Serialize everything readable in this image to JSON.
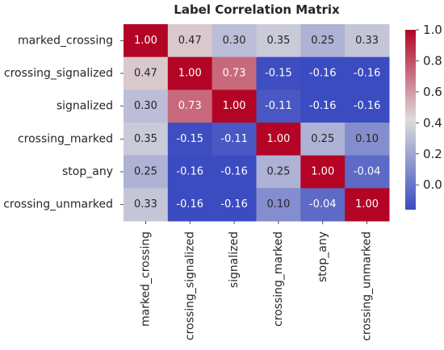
{
  "chart_data": {
    "type": "heatmap",
    "title": "Label Correlation Matrix",
    "row_labels": [
      "marked_crossing",
      "crossing_signalized",
      "signalized",
      "crossing_marked",
      "stop_any",
      "crossing_unmarked"
    ],
    "col_labels": [
      "marked_crossing",
      "crossing_signalized",
      "signalized",
      "crossing_marked",
      "stop_any",
      "crossing_unmarked"
    ],
    "values": [
      [
        1.0,
        0.47,
        0.3,
        0.35,
        0.25,
        0.33
      ],
      [
        0.47,
        1.0,
        0.73,
        -0.15,
        -0.16,
        -0.16
      ],
      [
        0.3,
        0.73,
        1.0,
        -0.11,
        -0.16,
        -0.16
      ],
      [
        0.35,
        -0.15,
        -0.11,
        1.0,
        0.25,
        0.1
      ],
      [
        0.25,
        -0.16,
        -0.16,
        0.25,
        1.0,
        -0.04
      ],
      [
        0.33,
        -0.16,
        -0.16,
        0.1,
        -0.04,
        1.0
      ]
    ],
    "value_format": "0.00",
    "colormap": "coolwarm",
    "colormap_stops": [
      "#3b4cc0",
      "#dddcdc",
      "#b40426"
    ],
    "color_range": [
      -0.16,
      1.0
    ],
    "colorbar_ticks": [
      "0.0",
      "0.2",
      "0.4",
      "0.6",
      "0.8",
      "1.0"
    ],
    "colorbar_tick_values": [
      0.0,
      0.2,
      0.4,
      0.6,
      0.8,
      1.0
    ],
    "annotations_shown": true
  }
}
